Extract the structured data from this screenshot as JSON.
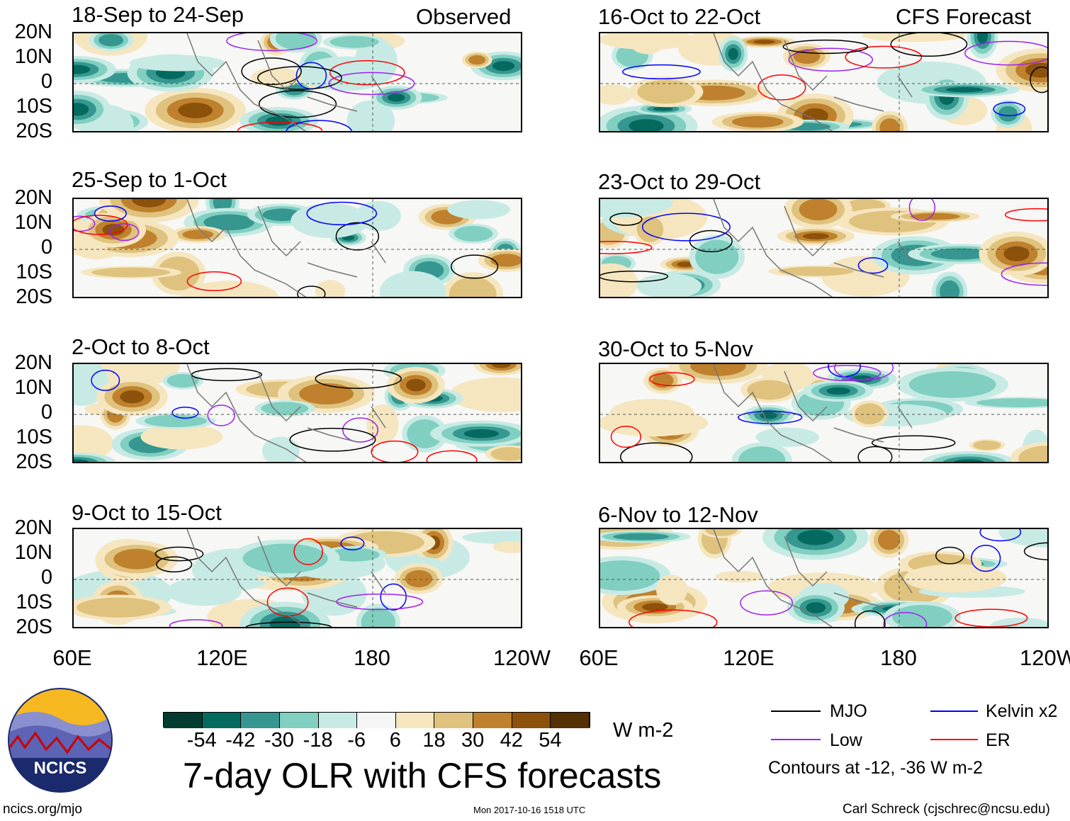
{
  "observed_label": "Observed",
  "forecast_label": "CFS Forecast",
  "panels": {
    "observed": [
      "18-Sep to 24-Sep",
      "25-Sep to 1-Oct",
      "2-Oct to 8-Oct",
      "9-Oct to 15-Oct"
    ],
    "forecast": [
      "16-Oct to 22-Oct",
      "23-Oct to 29-Oct",
      "30-Oct to 5-Nov",
      "6-Nov to 12-Nov"
    ]
  },
  "lat_labels": [
    "20N",
    "10N",
    "0",
    "10S",
    "20S"
  ],
  "lon_labels": [
    "60E",
    "120E",
    "180",
    "120W"
  ],
  "colorbar": {
    "labels": [
      "-54",
      "-42",
      "-30",
      "-18",
      "-6",
      "6",
      "18",
      "30",
      "42",
      "54"
    ],
    "colors": [
      "#023b30",
      "#04695f",
      "#359790",
      "#80cfc1",
      "#c7eae4",
      "#f5f5f5",
      "#f5e6c0",
      "#dfc27d",
      "#bf812d",
      "#8c510a",
      "#543005"
    ],
    "units": "W m-2"
  },
  "title": "7-day OLR with CFS forecasts",
  "legend": [
    {
      "label": "MJO",
      "color": "#000000"
    },
    {
      "label": "Kelvin x2",
      "color": "#0000ff"
    },
    {
      "label": "Low",
      "color": "#a020f0"
    },
    {
      "label": "ER",
      "color": "#ff0000"
    }
  ],
  "contours_note": "Contours at -12, -36 W m-2",
  "logo_text": "NCICS",
  "url": "ncics.org/mjo",
  "timestamp": "Mon 2017-10-16 1518 UTC",
  "credit": "Carl Schreck (cjschrec@ncsu.edu)"
}
